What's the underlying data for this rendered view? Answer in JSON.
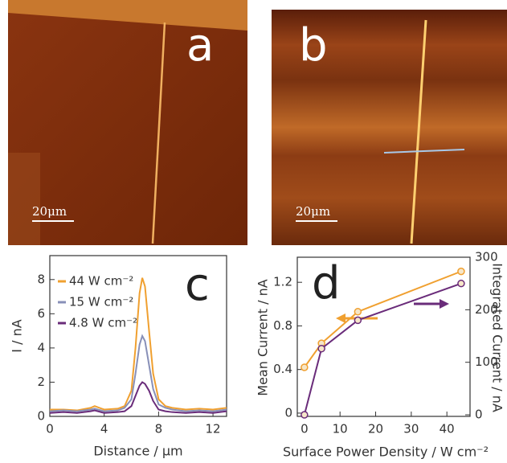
{
  "panels": [
    {
      "label": "a",
      "scale_bar": "20μm"
    },
    {
      "label": "b",
      "scale_bar": "20μm"
    }
  ],
  "chart_data": [
    {
      "type": "line",
      "label": "c",
      "x_label": "Distance / μm",
      "y_label": "I / nA",
      "x": [
        0,
        1,
        2,
        3,
        3.3,
        4,
        5,
        5.5,
        6,
        6.3,
        6.6,
        6.8,
        7,
        7.3,
        7.6,
        8,
        8.5,
        9,
        10,
        11,
        12,
        13
      ],
      "series": [
        {
          "name": "44 W cm⁻²",
          "color": "#f0a030",
          "values": [
            0.4,
            0.4,
            0.35,
            0.5,
            0.6,
            0.4,
            0.45,
            0.6,
            1.5,
            4,
            7.2,
            8.1,
            7.6,
            5,
            2.5,
            1,
            0.6,
            0.5,
            0.4,
            0.45,
            0.4,
            0.5
          ]
        },
        {
          "name": "15 W cm⁻²",
          "color": "#8890b8",
          "values": [
            0.3,
            0.35,
            0.3,
            0.4,
            0.45,
            0.3,
            0.35,
            0.5,
            1.0,
            2.5,
            4.2,
            4.7,
            4.4,
            3,
            1.6,
            0.7,
            0.5,
            0.4,
            0.3,
            0.35,
            0.3,
            0.4
          ]
        },
        {
          "name": "4.8 W cm⁻²",
          "color": "#6a2c7a",
          "values": [
            0.2,
            0.25,
            0.2,
            0.3,
            0.35,
            0.2,
            0.25,
            0.3,
            0.6,
            1.2,
            1.8,
            2.0,
            1.9,
            1.5,
            0.9,
            0.4,
            0.3,
            0.25,
            0.2,
            0.25,
            0.2,
            0.3
          ]
        }
      ],
      "xlim": [
        0,
        13
      ],
      "xticks": [
        0,
        4,
        8,
        12
      ],
      "ylim": [
        0,
        9.4
      ],
      "yticks": [
        0,
        2,
        4,
        6,
        8
      ],
      "legend": "upper left"
    },
    {
      "type": "line",
      "label": "d",
      "x_label": "Surface Power Density / W cm⁻²",
      "y_label": "Mean Current / nA",
      "y2_label": "Integrated Current / nA",
      "x": [
        0,
        4.8,
        15,
        44
      ],
      "series": [
        {
          "color": "#f0a030",
          "values": [
            0.42,
            0.64,
            0.93,
            1.3
          ],
          "markers": true
        },
        {
          "color": "#6a2c7a",
          "values": [
            0,
            126,
            180,
            250
          ],
          "axis": "y2",
          "markers": true
        }
      ],
      "xlim": [
        -2,
        46.5
      ],
      "xticks": [
        0,
        10,
        20,
        30,
        40
      ],
      "ylim": [
        -0.03,
        1.43
      ],
      "yticks": [
        0,
        0.4,
        0.8,
        1.2
      ],
      "y2lim": [
        -3,
        300
      ],
      "y2ticks": [
        0,
        100,
        200,
        300
      ]
    }
  ]
}
